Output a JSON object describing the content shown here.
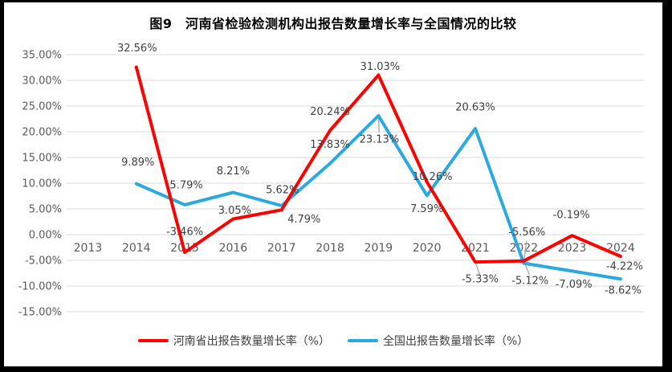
{
  "frame": {
    "border_color": "#000000",
    "background_color": "#ffffff"
  },
  "chart_data": {
    "type": "line",
    "title": "图9　河南省检验检测机构出报告数量增长率与全国情况的比较",
    "categories": [
      "2013",
      "2014",
      "2015",
      "2016",
      "2017",
      "2018",
      "2019",
      "2020",
      "2021",
      "2022",
      "2023",
      "2024"
    ],
    "series": [
      {
        "name": "河南省出报告数量增长率（%）",
        "slug": "henan",
        "color": "#FF0000",
        "values": [
          null,
          32.56,
          -3.46,
          3.05,
          4.79,
          20.24,
          31.03,
          10.26,
          -5.33,
          -5.12,
          -0.19,
          -4.22
        ]
      },
      {
        "name": "全国出报告数量增长率（%）",
        "slug": "national",
        "color": "#29A9DF",
        "values": [
          null,
          9.89,
          5.79,
          8.21,
          5.62,
          13.83,
          23.13,
          7.59,
          20.63,
          -5.56,
          -7.09,
          -8.62
        ]
      }
    ],
    "ylim": [
      -15,
      35
    ],
    "ytick_step": 5,
    "ytick_labels": [
      "35.00%",
      "30.00%",
      "25.00%",
      "20.00%",
      "15.00%",
      "10.00%",
      "5.00%",
      "0.00%",
      "-5.00%",
      "-10.00%",
      "-15.00%"
    ],
    "value_format": "0.00%",
    "grid": true,
    "vertical_grid": false,
    "data_labels": true,
    "legend_position": "bottom",
    "gridline_color": "#D9D9D9",
    "axis_text_color": "#595959",
    "data_label_color": "#404040",
    "leader_line_color": "#A6A6A6",
    "label_offsets": [
      [
        null,
        [
          1,
          -24
        ],
        [
          0,
          -26
        ],
        [
          2,
          -11
        ],
        [
          28,
          11
        ],
        [
          0,
          -24
        ],
        [
          2,
          -11
        ],
        [
          7,
          -7
        ],
        [
          6,
          21,
          1
        ],
        [
          8,
          24,
          1
        ],
        [
          -1,
          -26
        ],
        [
          5,
          12
        ]
      ],
      [
        null,
        [
          2,
          -27
        ],
        [
          2,
          -25
        ],
        [
          0,
          -27
        ],
        [
          1,
          -20
        ],
        [
          0,
          -24
        ],
        [
          1,
          29,
          1
        ],
        [
          0,
          16
        ],
        [
          0,
          -27
        ],
        [
          4,
          -39,
          1
        ],
        [
          2,
          16
        ],
        [
          3,
          14
        ]
      ]
    ]
  }
}
